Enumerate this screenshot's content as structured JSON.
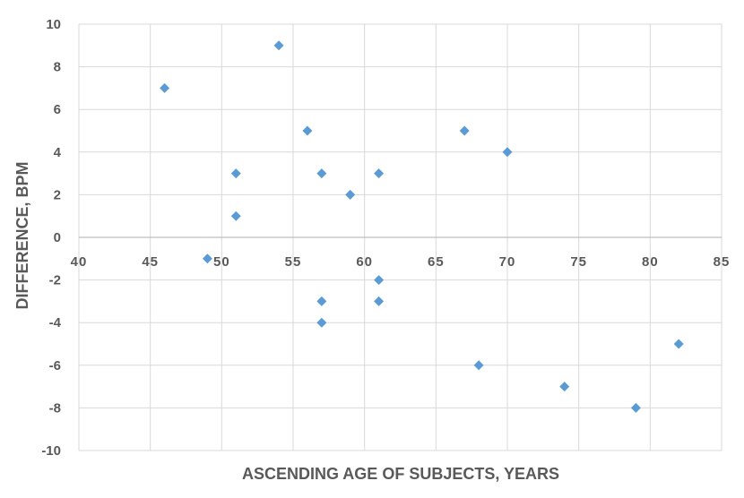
{
  "chart_data": {
    "type": "scatter",
    "title": "",
    "xlabel": "ASCENDING AGE OF SUBJECTS, YEARS",
    "ylabel": "DIFFERENCE, BPM",
    "xlim": [
      40,
      85
    ],
    "ylim": [
      -10,
      10
    ],
    "x_ticks": [
      40,
      45,
      50,
      55,
      60,
      65,
      70,
      75,
      80,
      85
    ],
    "y_ticks": [
      -10,
      -8,
      -6,
      -4,
      -2,
      0,
      2,
      4,
      6,
      8,
      10
    ],
    "grid": true,
    "legend": "none",
    "marker": "diamond",
    "marker_color": "#5B9BD5",
    "series": [
      {
        "points": [
          {
            "x": 46,
            "y": 7
          },
          {
            "x": 49,
            "y": -1
          },
          {
            "x": 51,
            "y": 3
          },
          {
            "x": 51,
            "y": 1
          },
          {
            "x": 54,
            "y": 9
          },
          {
            "x": 56,
            "y": 5
          },
          {
            "x": 57,
            "y": 3
          },
          {
            "x": 57,
            "y": -3
          },
          {
            "x": 57,
            "y": -4
          },
          {
            "x": 59,
            "y": 2
          },
          {
            "x": 61,
            "y": 3
          },
          {
            "x": 61,
            "y": -2
          },
          {
            "x": 61,
            "y": -3
          },
          {
            "x": 67,
            "y": 5
          },
          {
            "x": 68,
            "y": -6
          },
          {
            "x": 70,
            "y": 4
          },
          {
            "x": 74,
            "y": -7
          },
          {
            "x": 79,
            "y": -8
          },
          {
            "x": 82,
            "y": -5
          }
        ]
      }
    ]
  }
}
